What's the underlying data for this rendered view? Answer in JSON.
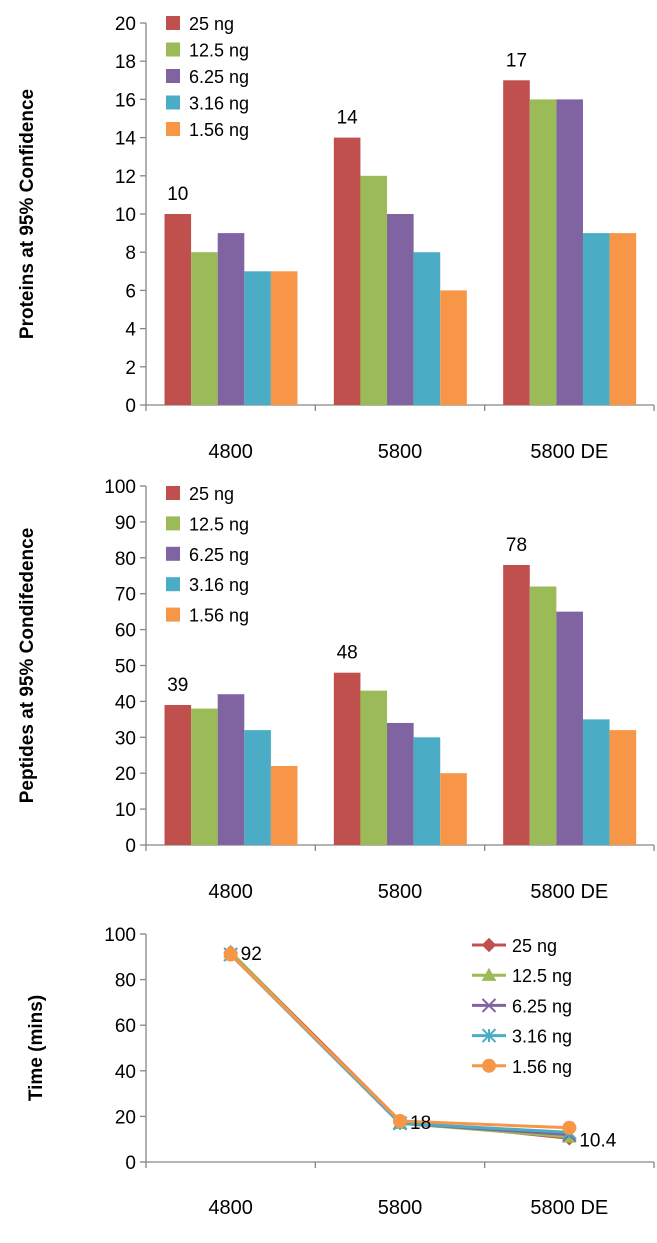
{
  "chart_data": [
    {
      "type": "bar",
      "categories": [
        "4800",
        "5800",
        "5800 DE"
      ],
      "ylabel": "Proteins at 95% Confidence",
      "ylim": [
        0,
        20
      ],
      "ytick_step": 2,
      "legend_position": "top-left",
      "series": [
        {
          "name": "25 ng",
          "values": [
            10,
            14,
            17
          ]
        },
        {
          "name": "12.5 ng",
          "values": [
            8,
            12,
            16
          ]
        },
        {
          "name": "6.25 ng",
          "values": [
            9,
            10,
            16
          ]
        },
        {
          "name": "3.16 ng",
          "values": [
            7,
            8,
            9
          ]
        },
        {
          "name": "1.56 ng",
          "values": [
            7,
            6,
            9
          ]
        }
      ],
      "data_labels": [
        {
          "series": 0,
          "category": 0,
          "text": "10"
        },
        {
          "series": 0,
          "category": 1,
          "text": "14"
        },
        {
          "series": 0,
          "category": 2,
          "text": "17"
        }
      ]
    },
    {
      "type": "bar",
      "categories": [
        "4800",
        "5800",
        "5800 DE"
      ],
      "ylabel": "Peptides at 95% Condifedence",
      "ylim": [
        0,
        100
      ],
      "ytick_step": 10,
      "legend_position": "top-left",
      "series": [
        {
          "name": "25 ng",
          "values": [
            39,
            48,
            78
          ]
        },
        {
          "name": "12.5 ng",
          "values": [
            38,
            43,
            72
          ]
        },
        {
          "name": "6.25 ng",
          "values": [
            42,
            34,
            65
          ]
        },
        {
          "name": "3.16 ng",
          "values": [
            32,
            30,
            35
          ]
        },
        {
          "name": "1.56 ng",
          "values": [
            22,
            20,
            32
          ]
        }
      ],
      "data_labels": [
        {
          "series": 0,
          "category": 0,
          "text": "39"
        },
        {
          "series": 0,
          "category": 1,
          "text": "48"
        },
        {
          "series": 0,
          "category": 2,
          "text": "78"
        }
      ]
    },
    {
      "type": "line",
      "categories": [
        "4800",
        "5800",
        "5800 DE"
      ],
      "ylabel": "Time (mins)",
      "ylim": [
        0,
        100
      ],
      "ytick_step": 20,
      "legend_position": "top-right",
      "series": [
        {
          "name": "25 ng",
          "marker": "diamond",
          "values": [
            92,
            18,
            10.4
          ]
        },
        {
          "name": "12.5 ng",
          "marker": "triangle",
          "values": [
            92,
            17,
            11
          ]
        },
        {
          "name": "6.25 ng",
          "marker": "x",
          "values": [
            91,
            17,
            12
          ]
        },
        {
          "name": "3.16 ng",
          "marker": "star",
          "values": [
            91,
            17,
            13
          ]
        },
        {
          "name": "1.56 ng",
          "marker": "circle",
          "values": [
            91,
            18,
            15
          ]
        }
      ],
      "data_labels": [
        {
          "series": 0,
          "category": 0,
          "text": "92"
        },
        {
          "series": 0,
          "category": 1,
          "text": "18"
        },
        {
          "series": 0,
          "category": 2,
          "text": "10.4"
        }
      ]
    }
  ],
  "colors": {
    "series": [
      "#C0504D",
      "#9BBB59",
      "#8064A2",
      "#4BACC6",
      "#F79646"
    ],
    "axis": "#868686"
  }
}
